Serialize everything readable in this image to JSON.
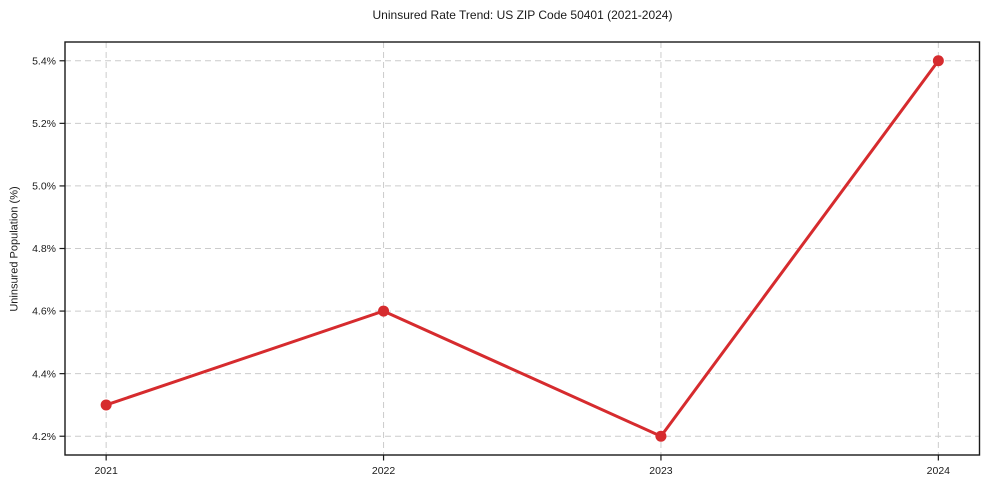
{
  "chart_data": {
    "type": "line",
    "title": "Uninsured Rate Trend: US ZIP Code 50401 (2021-2024)",
    "ylabel": "Uninsured Population (%)",
    "xlabel": "",
    "x": [
      "2021",
      "2022",
      "2023",
      "2024"
    ],
    "values": [
      4.3,
      4.6,
      4.2,
      5.4
    ],
    "yticks": [
      {
        "value": 4.2,
        "label": "4.2%"
      },
      {
        "value": 4.4,
        "label": "4.4%"
      },
      {
        "value": 4.6,
        "label": "4.6%"
      },
      {
        "value": 4.8,
        "label": "4.8%"
      },
      {
        "value": 5.0,
        "label": "5.0%"
      },
      {
        "value": 5.2,
        "label": "5.2%"
      },
      {
        "value": 5.4,
        "label": "5.4%"
      }
    ],
    "ylim": [
      4.14,
      5.46
    ],
    "grid": "dashed, both axes",
    "legend": "none",
    "colors": {
      "line": "#d62b2e",
      "marker": "#d62b2e",
      "grid": "#cccccc",
      "spine": "#1a1a1a",
      "text": "#1a1a1a",
      "background": "#ffffff"
    }
  }
}
